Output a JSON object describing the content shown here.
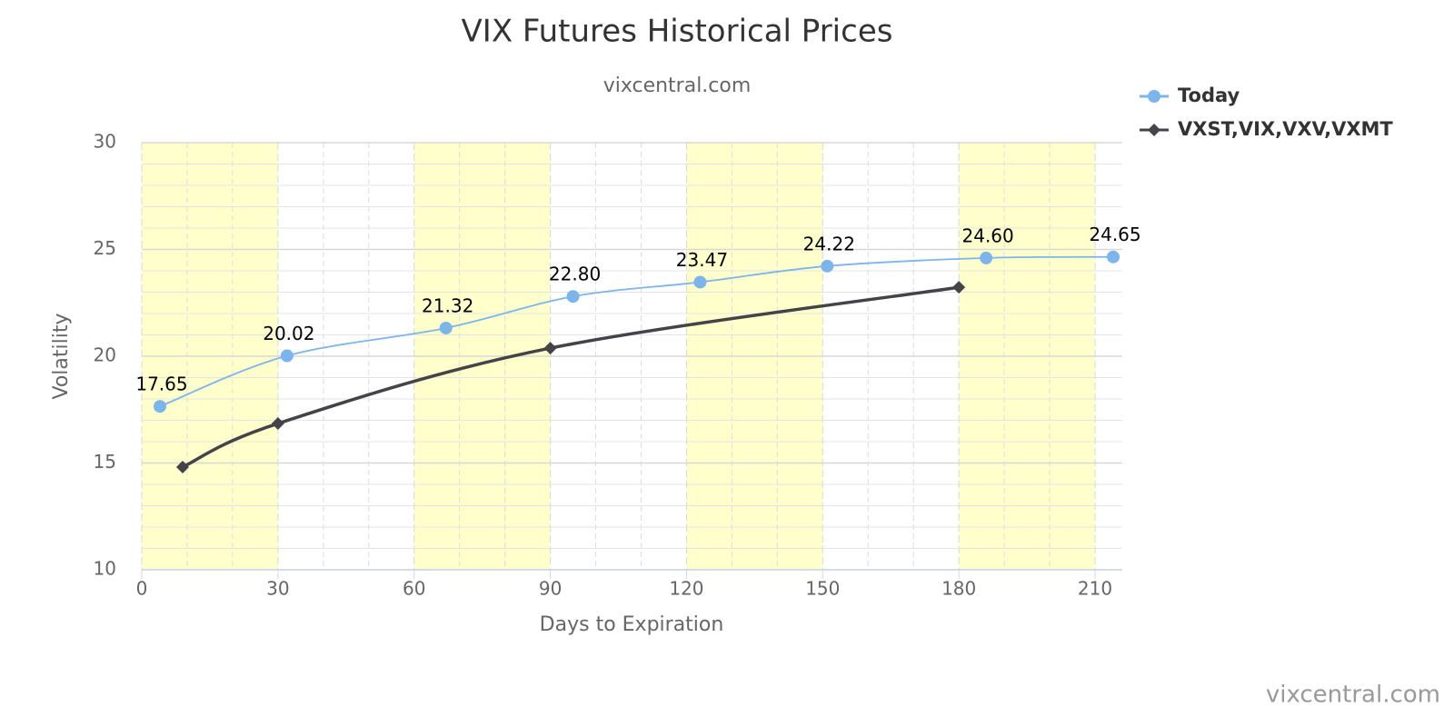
{
  "chart_data": {
    "type": "spline",
    "title": "VIX Futures Historical Prices",
    "subtitle": "vixcentral.com",
    "credit": "vixcentral.com",
    "x_label": "Days to Expiration",
    "y_label": "Volatility",
    "xlim": [
      0,
      216
    ],
    "xticks": [
      0,
      30,
      60,
      90,
      120,
      150,
      180,
      210
    ],
    "ylim": [
      10,
      30
    ],
    "yticks": [
      10,
      15,
      20,
      25,
      30
    ],
    "grid": true,
    "plot_bands": [
      [
        0,
        30
      ],
      [
        60,
        90
      ],
      [
        120,
        150
      ],
      [
        180,
        210
      ]
    ],
    "band_color": "#ffffcc",
    "legend": "top-right",
    "series": [
      {
        "name": "Today",
        "color": "#7cb5ec",
        "marker": "circle",
        "x": [
          4,
          32,
          67,
          95,
          123,
          151,
          186,
          214
        ],
        "values": [
          17.65,
          20.02,
          21.32,
          22.8,
          23.47,
          24.22,
          24.6,
          24.65
        ],
        "value_labels": [
          "17.65",
          "20.02",
          "21.32",
          "22.80",
          "23.47",
          "24.22",
          "24.60",
          "24.65"
        ]
      },
      {
        "name": "VXST,VIX,VXV,VXMT",
        "color": "#434348",
        "marker": "diamond",
        "x": [
          9,
          30,
          90,
          180
        ],
        "values": [
          14.81,
          16.85,
          20.38,
          23.23
        ]
      }
    ]
  }
}
